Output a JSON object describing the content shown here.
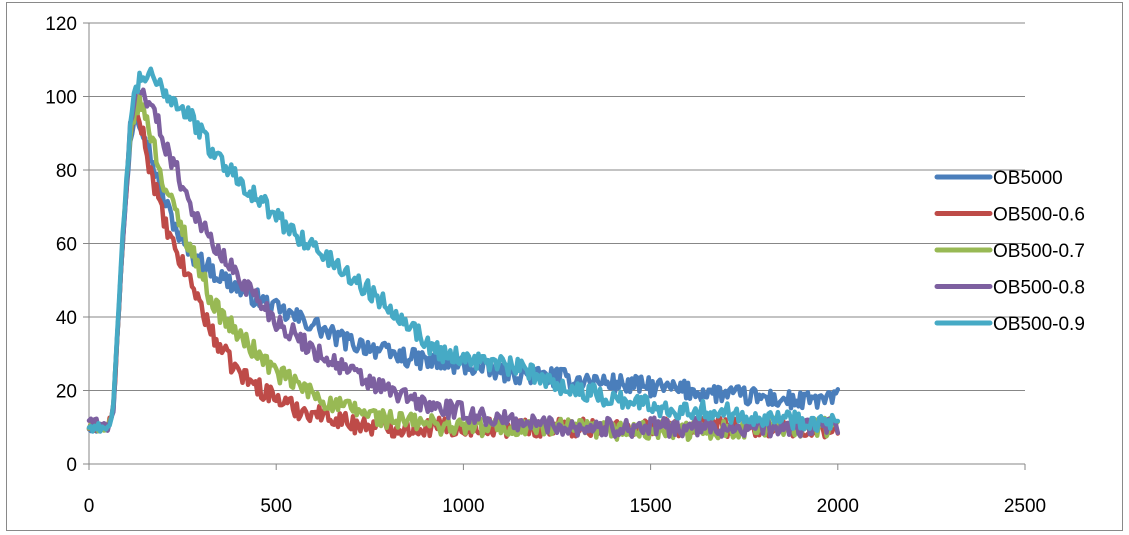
{
  "chart_data": {
    "type": "line",
    "title": "",
    "xlabel": "",
    "ylabel": "",
    "xlim": [
      0,
      2500
    ],
    "ylim": [
      0,
      120
    ],
    "x_ticks": [
      0,
      500,
      1000,
      1500,
      2000,
      2500
    ],
    "y_ticks": [
      0,
      20,
      40,
      60,
      80,
      100,
      120
    ],
    "x_tick_labels": [
      "0",
      "500",
      "1000",
      "1500",
      "2000",
      "2500"
    ],
    "y_tick_labels": [
      "0",
      "20",
      "40",
      "60",
      "80",
      "100",
      "120"
    ],
    "grid": "horizontal",
    "legend_position": "right",
    "series": [
      {
        "name": "OB5000",
        "color": "#4a7ebb",
        "points": [
          [
            0,
            10
          ],
          [
            50,
            10
          ],
          [
            65,
            15
          ],
          [
            90,
            60
          ],
          [
            110,
            88
          ],
          [
            125,
            96
          ],
          [
            140,
            93
          ],
          [
            160,
            86
          ],
          [
            180,
            78
          ],
          [
            200,
            72
          ],
          [
            225,
            66
          ],
          [
            250,
            60
          ],
          [
            275,
            57
          ],
          [
            300,
            55
          ],
          [
            350,
            51
          ],
          [
            400,
            48
          ],
          [
            450,
            45
          ],
          [
            500,
            42
          ],
          [
            550,
            40
          ],
          [
            600,
            38
          ],
          [
            650,
            35
          ],
          [
            700,
            33
          ],
          [
            750,
            32
          ],
          [
            800,
            30
          ],
          [
            850,
            29
          ],
          [
            900,
            28
          ],
          [
            950,
            27
          ],
          [
            1000,
            27
          ],
          [
            1100,
            25
          ],
          [
            1200,
            24
          ],
          [
            1300,
            23
          ],
          [
            1400,
            22
          ],
          [
            1500,
            21
          ],
          [
            1600,
            20
          ],
          [
            1700,
            19
          ],
          [
            1800,
            18
          ],
          [
            1900,
            17
          ],
          [
            2000,
            18
          ]
        ]
      },
      {
        "name": "OB500-0.6",
        "color": "#be4b48",
        "points": [
          [
            0,
            10
          ],
          [
            50,
            10
          ],
          [
            65,
            15
          ],
          [
            90,
            60
          ],
          [
            110,
            90
          ],
          [
            125,
            95
          ],
          [
            140,
            92
          ],
          [
            160,
            82
          ],
          [
            180,
            74
          ],
          [
            200,
            66
          ],
          [
            225,
            59
          ],
          [
            250,
            54
          ],
          [
            275,
            49
          ],
          [
            300,
            43
          ],
          [
            325,
            36
          ],
          [
            350,
            32
          ],
          [
            375,
            28
          ],
          [
            400,
            25
          ],
          [
            450,
            21
          ],
          [
            500,
            18
          ],
          [
            550,
            15
          ],
          [
            600,
            14
          ],
          [
            650,
            13
          ],
          [
            700,
            11
          ],
          [
            800,
            10
          ],
          [
            900,
            10
          ],
          [
            1000,
            10
          ],
          [
            1200,
            10
          ],
          [
            1400,
            10
          ],
          [
            1600,
            10
          ],
          [
            1800,
            10
          ],
          [
            2000,
            9
          ]
        ]
      },
      {
        "name": "OB500-0.7",
        "color": "#98b954",
        "points": [
          [
            0,
            10
          ],
          [
            50,
            10
          ],
          [
            65,
            15
          ],
          [
            90,
            60
          ],
          [
            110,
            90
          ],
          [
            125,
            97
          ],
          [
            140,
            98
          ],
          [
            160,
            92
          ],
          [
            180,
            84
          ],
          [
            200,
            76
          ],
          [
            225,
            70
          ],
          [
            250,
            64
          ],
          [
            275,
            58
          ],
          [
            300,
            52
          ],
          [
            325,
            45
          ],
          [
            350,
            41
          ],
          [
            400,
            35
          ],
          [
            450,
            30
          ],
          [
            500,
            25
          ],
          [
            550,
            22
          ],
          [
            600,
            19
          ],
          [
            650,
            16
          ],
          [
            700,
            15
          ],
          [
            800,
            12
          ],
          [
            900,
            11
          ],
          [
            1000,
            10
          ],
          [
            1200,
            10
          ],
          [
            1400,
            9
          ],
          [
            1600,
            9
          ],
          [
            1800,
            10
          ],
          [
            2000,
            10
          ]
        ]
      },
      {
        "name": "OB500-0.8",
        "color": "#7d60a0",
        "points": [
          [
            0,
            12
          ],
          [
            50,
            10
          ],
          [
            65,
            15
          ],
          [
            90,
            60
          ],
          [
            110,
            92
          ],
          [
            125,
            100
          ],
          [
            140,
            102
          ],
          [
            160,
            99
          ],
          [
            180,
            94
          ],
          [
            200,
            88
          ],
          [
            225,
            82
          ],
          [
            250,
            76
          ],
          [
            275,
            70
          ],
          [
            300,
            65
          ],
          [
            325,
            61
          ],
          [
            350,
            57
          ],
          [
            400,
            51
          ],
          [
            450,
            45
          ],
          [
            500,
            39
          ],
          [
            550,
            35
          ],
          [
            600,
            31
          ],
          [
            650,
            28
          ],
          [
            700,
            25
          ],
          [
            750,
            22
          ],
          [
            800,
            20
          ],
          [
            850,
            18
          ],
          [
            900,
            16
          ],
          [
            950,
            15
          ],
          [
            1000,
            14
          ],
          [
            1100,
            12
          ],
          [
            1200,
            11
          ],
          [
            1300,
            10
          ],
          [
            1400,
            10
          ],
          [
            1600,
            10
          ],
          [
            1800,
            10
          ],
          [
            2000,
            10
          ]
        ]
      },
      {
        "name": "OB500-0.9",
        "color": "#46aac5",
        "points": [
          [
            0,
            10
          ],
          [
            50,
            10
          ],
          [
            65,
            15
          ],
          [
            90,
            62
          ],
          [
            110,
            92
          ],
          [
            125,
            102
          ],
          [
            140,
            105
          ],
          [
            160,
            106
          ],
          [
            180,
            103
          ],
          [
            200,
            102
          ],
          [
            225,
            99
          ],
          [
            250,
            97
          ],
          [
            275,
            94
          ],
          [
            300,
            90
          ],
          [
            325,
            86
          ],
          [
            350,
            83
          ],
          [
            375,
            80
          ],
          [
            400,
            78
          ],
          [
            425,
            75
          ],
          [
            450,
            72
          ],
          [
            475,
            70
          ],
          [
            500,
            67
          ],
          [
            550,
            63
          ],
          [
            600,
            59
          ],
          [
            650,
            55
          ],
          [
            700,
            51
          ],
          [
            750,
            47
          ],
          [
            800,
            43
          ],
          [
            850,
            39
          ],
          [
            900,
            33
          ],
          [
            950,
            30
          ],
          [
            1000,
            29
          ],
          [
            1050,
            28
          ],
          [
            1100,
            27
          ],
          [
            1150,
            26
          ],
          [
            1200,
            24
          ],
          [
            1250,
            22
          ],
          [
            1300,
            20
          ],
          [
            1350,
            19
          ],
          [
            1400,
            18
          ],
          [
            1450,
            17
          ],
          [
            1500,
            16
          ],
          [
            1550,
            15
          ],
          [
            1600,
            15
          ],
          [
            1700,
            14
          ],
          [
            1800,
            13
          ],
          [
            1900,
            12
          ],
          [
            2000,
            11
          ]
        ]
      }
    ]
  }
}
